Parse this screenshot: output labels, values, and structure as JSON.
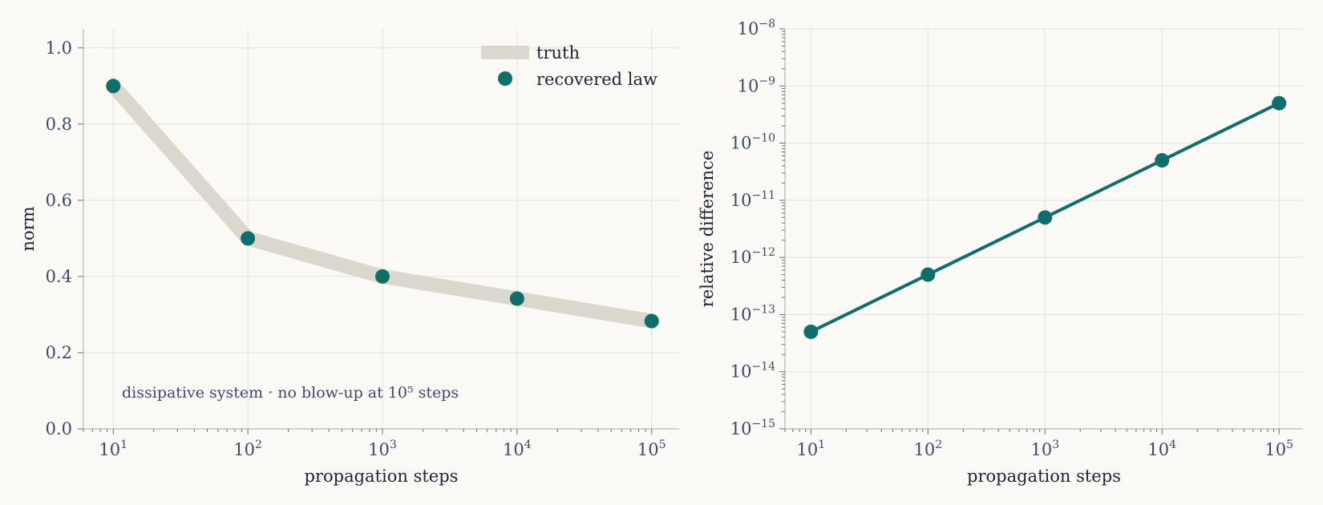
{
  "colors": {
    "background": "#faf9f5",
    "truth": "#dcd7cc",
    "recovered": "#0f6e69",
    "text": "#3b4a6b"
  },
  "chart_data": [
    {
      "type": "line",
      "xscale": "log",
      "xlim": [
        6,
        160000
      ],
      "ylim": [
        0,
        1.05
      ],
      "x": [
        10,
        100,
        1000,
        10000,
        100000
      ],
      "xticks": [
        10,
        100,
        1000,
        10000,
        100000
      ],
      "xtick_labels": [
        {
          "base": "10",
          "exp": "1"
        },
        {
          "base": "10",
          "exp": "2"
        },
        {
          "base": "10",
          "exp": "3"
        },
        {
          "base": "10",
          "exp": "4"
        },
        {
          "base": "10",
          "exp": "5"
        }
      ],
      "yticks": [
        0.0,
        0.2,
        0.4,
        0.6,
        0.8,
        1.0
      ],
      "ytick_labels": [
        "0.0",
        "0.2",
        "0.4",
        "0.6",
        "0.8",
        "1.0"
      ],
      "xlabel": "propagation steps",
      "ylabel": "norm",
      "grid": true,
      "legend": "top-right",
      "series": [
        {
          "name": "truth",
          "style": "thick-band",
          "values": [
            0.9,
            0.5,
            0.4,
            0.342,
            0.283
          ]
        },
        {
          "name": "recovered law",
          "style": "markers",
          "values": [
            0.9,
            0.5,
            0.4,
            0.342,
            0.283
          ]
        }
      ],
      "annotation": "dissipative system · no blow-up at 10⁵ steps"
    },
    {
      "type": "line",
      "xscale": "log",
      "yscale": "log",
      "xlim": [
        6,
        160000
      ],
      "ylim": [
        1e-15,
        1e-08
      ],
      "x": [
        10,
        100,
        1000,
        10000,
        100000
      ],
      "xticks": [
        10,
        100,
        1000,
        10000,
        100000
      ],
      "xtick_labels": [
        {
          "base": "10",
          "exp": "1"
        },
        {
          "base": "10",
          "exp": "2"
        },
        {
          "base": "10",
          "exp": "3"
        },
        {
          "base": "10",
          "exp": "4"
        },
        {
          "base": "10",
          "exp": "5"
        }
      ],
      "yticks": [
        1e-15,
        1e-14,
        1e-13,
        1e-12,
        1e-11,
        1e-10,
        1e-09,
        1e-08
      ],
      "ytick_labels": [
        {
          "base": "10",
          "exp": "−15"
        },
        {
          "base": "10",
          "exp": "−14"
        },
        {
          "base": "10",
          "exp": "−13"
        },
        {
          "base": "10",
          "exp": "−12"
        },
        {
          "base": "10",
          "exp": "−11"
        },
        {
          "base": "10",
          "exp": "−10"
        },
        {
          "base": "10",
          "exp": "−9"
        },
        {
          "base": "10",
          "exp": "−8"
        }
      ],
      "xlabel": "propagation steps",
      "ylabel": "relative difference",
      "grid": true,
      "series": [
        {
          "style": "line+markers",
          "values": [
            5e-14,
            5e-13,
            5e-12,
            5e-11,
            5e-10
          ]
        }
      ]
    }
  ]
}
